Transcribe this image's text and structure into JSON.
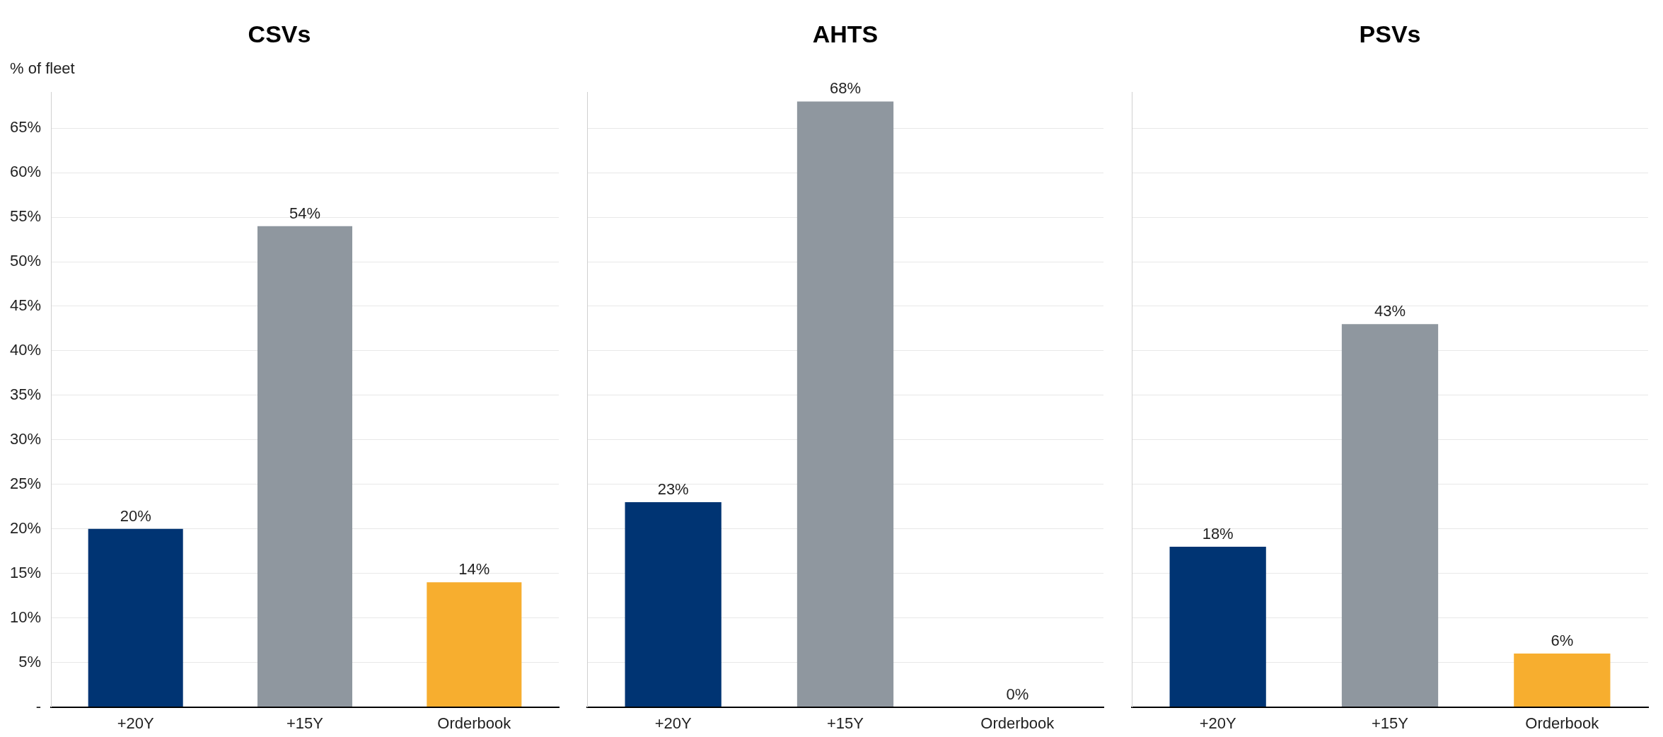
{
  "chart_data": [
    {
      "type": "bar",
      "title": "CSVs",
      "ylabel": "% of fleet",
      "categories": [
        "+20Y",
        "+15Y",
        "Orderbook"
      ],
      "values": [
        20,
        54,
        14
      ],
      "colors": [
        "#003473",
        "#8f979f",
        "#f7ae2f"
      ],
      "value_labels": [
        "20%",
        "54%",
        "14%"
      ],
      "ylim": [
        0,
        69
      ],
      "yticks": [
        {
          "value": 0,
          "label": "-"
        },
        {
          "value": 5,
          "label": "5%"
        },
        {
          "value": 10,
          "label": "10%"
        },
        {
          "value": 15,
          "label": "15%"
        },
        {
          "value": 20,
          "label": "20%"
        },
        {
          "value": 25,
          "label": "25%"
        },
        {
          "value": 30,
          "label": "30%"
        },
        {
          "value": 35,
          "label": "35%"
        },
        {
          "value": 40,
          "label": "40%"
        },
        {
          "value": 45,
          "label": "45%"
        },
        {
          "value": 50,
          "label": "50%"
        },
        {
          "value": 55,
          "label": "55%"
        },
        {
          "value": 60,
          "label": "60%"
        },
        {
          "value": 65,
          "label": "65%"
        }
      ],
      "grid": "y",
      "legend": false
    },
    {
      "type": "bar",
      "title": "AHTS",
      "categories": [
        "+20Y",
        "+15Y",
        "Orderbook"
      ],
      "values": [
        23,
        68,
        0
      ],
      "colors": [
        "#003473",
        "#8f979f",
        "#f7ae2f"
      ],
      "value_labels": [
        "23%",
        "68%",
        "0%"
      ],
      "ylim": [
        0,
        69
      ],
      "yticks": [
        0,
        5,
        10,
        15,
        20,
        25,
        30,
        35,
        40,
        45,
        50,
        55,
        60,
        65
      ],
      "grid": "y",
      "legend": false,
      "tick_labels": "x"
    },
    {
      "type": "bar",
      "title": "PSVs",
      "categories": [
        "+20Y",
        "+15Y",
        "Orderbook"
      ],
      "values": [
        18,
        43,
        6
      ],
      "colors": [
        "#003473",
        "#8f979f",
        "#f7ae2f"
      ],
      "value_labels": [
        "18%",
        "43%",
        "6%"
      ],
      "ylim": [
        0,
        69
      ],
      "yticks": [
        0,
        5,
        10,
        15,
        20,
        25,
        30,
        35,
        40,
        45,
        50,
        55,
        60,
        65
      ],
      "grid": "y",
      "legend": false,
      "tick_labels": "x"
    }
  ]
}
